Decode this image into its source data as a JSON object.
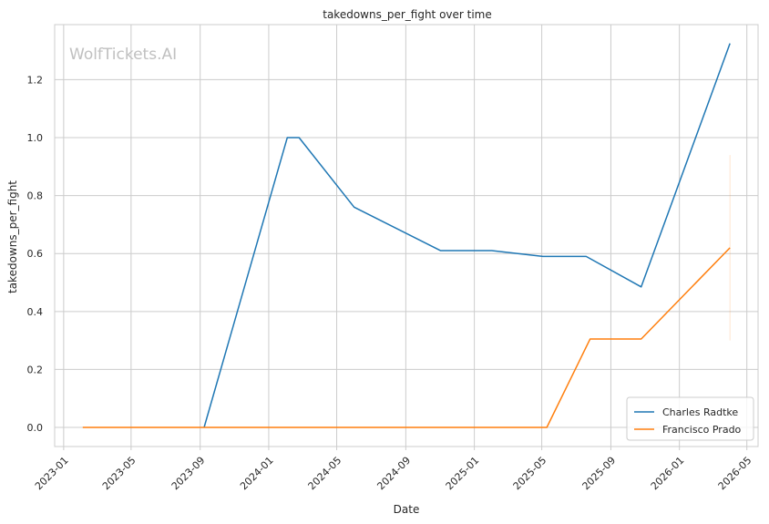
{
  "chart_data": {
    "type": "line",
    "title": "takedowns_per_fight over time",
    "xlabel": "Date",
    "ylabel": "takedowns_per_fight",
    "watermark": "WolfTickets.AI",
    "xlim": [
      "2022-12-16",
      "2026-05-21"
    ],
    "ylim": [
      -0.066,
      1.39
    ],
    "x_ticks": [
      "2023-01",
      "2023-05",
      "2023-09",
      "2024-01",
      "2024-05",
      "2024-09",
      "2025-01",
      "2025-05",
      "2025-09",
      "2026-01",
      "2026-05"
    ],
    "y_ticks": [
      0.0,
      0.2,
      0.4,
      0.6,
      0.8,
      1.0,
      1.2
    ],
    "y_tick_labels": [
      "0.0",
      "0.2",
      "0.4",
      "0.6",
      "0.8",
      "1.0",
      "1.2"
    ],
    "grid": true,
    "legend_position": "bottom-right",
    "series": [
      {
        "name": "Charles Radtke",
        "color": "#1f77b4",
        "points": [
          [
            "2023-09-08",
            0.0
          ],
          [
            "2024-02-03",
            1.0
          ],
          [
            "2024-02-24",
            1.0
          ],
          [
            "2024-06-01",
            0.76
          ],
          [
            "2024-11-02",
            0.61
          ],
          [
            "2025-02-01",
            0.61
          ],
          [
            "2025-05-03",
            0.59
          ],
          [
            "2025-07-19",
            0.59
          ],
          [
            "2025-10-25",
            0.485
          ],
          [
            "2026-04-01",
            1.325
          ]
        ]
      },
      {
        "name": "Francisco Prado",
        "color": "#ff7f0e",
        "points": [
          [
            "2023-02-04",
            0.0
          ],
          [
            "2025-05-10",
            0.0
          ],
          [
            "2025-07-26",
            0.305
          ],
          [
            "2025-10-25",
            0.305
          ],
          [
            "2026-04-01",
            0.62
          ]
        ]
      }
    ],
    "error_band": {
      "color": "#ff7f0e",
      "x": "2026-04-01",
      "low": 0.3,
      "high": 0.94
    }
  }
}
